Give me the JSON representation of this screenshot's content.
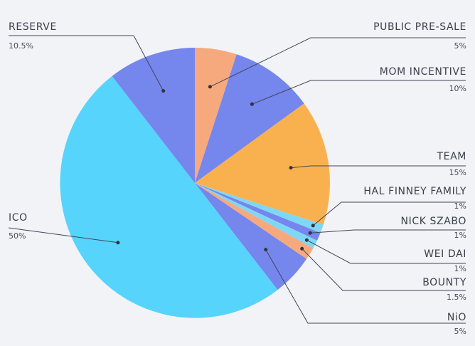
{
  "chart_data": {
    "type": "pie",
    "slices": [
      {
        "label": "PUBLIC PRE-SALE",
        "value": 5,
        "pct_label": "5%",
        "color": "#f7a97e"
      },
      {
        "label": "MOM INCENTIVE",
        "value": 10,
        "pct_label": "10%",
        "color": "#7586ec"
      },
      {
        "label": "TEAM",
        "value": 15,
        "pct_label": "15%",
        "color": "#f9b150"
      },
      {
        "label": "HAL FINNEY FAMILY",
        "value": 1,
        "pct_label": "1%",
        "color": "#7ed8f5"
      },
      {
        "label": "NICK SZABO",
        "value": 1,
        "pct_label": "1%",
        "color": "#7586ec"
      },
      {
        "label": "WEI DAI",
        "value": 1,
        "pct_label": "1%",
        "color": "#7ed8f5"
      },
      {
        "label": "BOUNTY",
        "value": 1.5,
        "pct_label": "1.5%",
        "color": "#f7a97e"
      },
      {
        "label": "NiO",
        "value": 5,
        "pct_label": "5%",
        "color": "#7586ec"
      },
      {
        "label": "ICO",
        "value": 50,
        "pct_label": "50%",
        "color": "#56d4fb"
      },
      {
        "label": "RESERVE",
        "value": 10.5,
        "pct_label": "10.5%",
        "color": "#7586ec"
      }
    ]
  }
}
